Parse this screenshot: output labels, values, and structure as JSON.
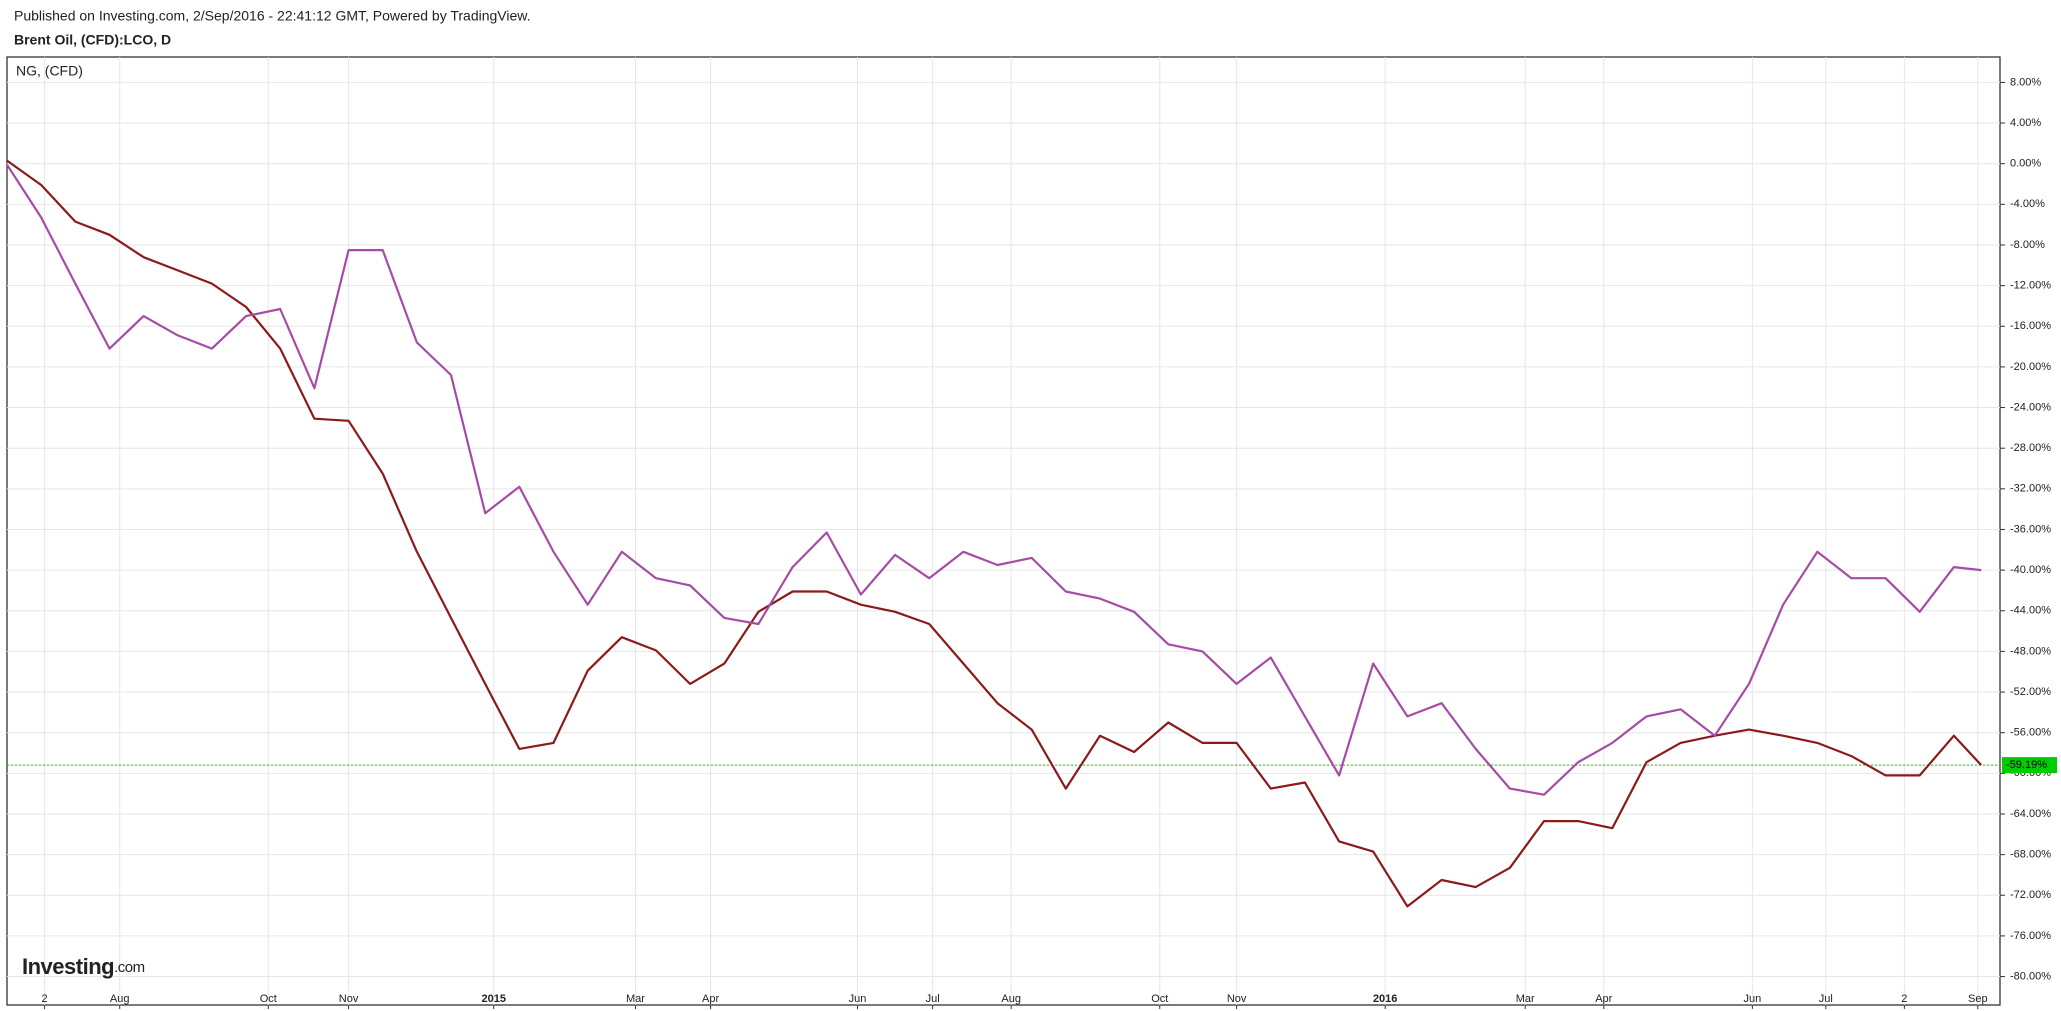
{
  "chart_data": {
    "type": "line",
    "title": "Published on Investing.com, 2/Sep/2016 - 22:41:12 GMT, Powered by TradingView.",
    "x": [
      0,
      2,
      4,
      6,
      8,
      10,
      12,
      14,
      16,
      18,
      20,
      22,
      24,
      26,
      28,
      30,
      32,
      34,
      36,
      38,
      40,
      42,
      44,
      46,
      48,
      50,
      52,
      54,
      56,
      58,
      60,
      62,
      64,
      66,
      68,
      70,
      72,
      74,
      76,
      78,
      80,
      82,
      84,
      86,
      88,
      90,
      92,
      94,
      96,
      98,
      100,
      102,
      104,
      106,
      108,
      110,
      112,
      114,
      115.6
    ],
    "series": [
      {
        "name": "Brent Oil, (CFD):LCO, D",
        "color": "#8b1a1a",
        "values": [
          0.3,
          -2.1,
          -5.7,
          -7.0,
          -9.2,
          -10.5,
          -11.8,
          -14.1,
          -18.2,
          -25.1,
          -25.3,
          -30.5,
          -38.2,
          -44.7,
          -51.2,
          -57.6,
          -57.0,
          -49.9,
          -46.6,
          -47.9,
          -51.2,
          -49.2,
          -44.1,
          -42.1,
          -42.1,
          -43.4,
          -44.1,
          -45.3,
          -49.2,
          -53.1,
          -55.7,
          -61.5,
          -56.3,
          -57.9,
          -55.0,
          -57.0,
          -57.0,
          -61.5,
          -60.9,
          -66.7,
          -67.7,
          -73.1,
          -70.5,
          -71.2,
          -69.3,
          -64.7,
          -64.7,
          -65.4,
          -58.9,
          -57.0,
          -56.3,
          -55.7,
          -56.3,
          -57.0,
          -58.3,
          -60.2,
          -60.2,
          -56.3,
          -59.19
        ]
      },
      {
        "name": "NG,  (CFD)",
        "color": "#a64ca6",
        "values": [
          -0.1,
          -5.3,
          -11.8,
          -18.2,
          -15.0,
          -16.9,
          -18.2,
          -15.0,
          -14.3,
          -22.1,
          -8.5,
          -8.5,
          -17.6,
          -20.8,
          -34.4,
          -31.8,
          -38.2,
          -43.4,
          -38.2,
          -40.8,
          -41.5,
          -44.7,
          -45.3,
          -39.7,
          -36.3,
          -42.4,
          -38.5,
          -40.8,
          -38.2,
          -39.5,
          -38.8,
          -42.1,
          -42.8,
          -44.1,
          -47.3,
          -48.0,
          -51.2,
          -48.6,
          -54.4,
          -60.2,
          -49.2,
          -54.4,
          -53.1,
          -57.6,
          -61.5,
          -62.1,
          -58.9,
          -57.0,
          -54.4,
          -53.7,
          -56.3,
          -51.2,
          -43.4,
          -38.2,
          -40.8,
          -40.8,
          -44.1,
          -39.7,
          -40.0
        ]
      }
    ],
    "reference_line": {
      "value": -59.19,
      "label": "-59.19%",
      "color": "#00cc00"
    },
    "xlim": [
      0,
      116.7
    ],
    "xticks": [
      {
        "value": 2.2,
        "label": "2"
      },
      {
        "value": 6.6,
        "label": "Aug"
      },
      {
        "value": 15.3,
        "label": "Oct"
      },
      {
        "value": 20.0,
        "label": "Nov"
      },
      {
        "value": 28.5,
        "label": "2015"
      },
      {
        "value": 36.8,
        "label": "Mar"
      },
      {
        "value": 41.2,
        "label": "Apr"
      },
      {
        "value": 49.8,
        "label": "Jun"
      },
      {
        "value": 54.2,
        "label": "Jul"
      },
      {
        "value": 58.8,
        "label": "Aug"
      },
      {
        "value": 67.5,
        "label": "Oct"
      },
      {
        "value": 72.0,
        "label": "Nov"
      },
      {
        "value": 80.7,
        "label": "2016"
      },
      {
        "value": 88.9,
        "label": "Mar"
      },
      {
        "value": 93.5,
        "label": "Apr"
      },
      {
        "value": 102.2,
        "label": "Jun"
      },
      {
        "value": 106.5,
        "label": "Jul"
      },
      {
        "value": 111.1,
        "label": "2"
      },
      {
        "value": 115.4,
        "label": "Sep"
      }
    ],
    "ylim": [
      -82.8,
      10.5
    ],
    "yticks": [
      {
        "value": 8,
        "label": "8.00%"
      },
      {
        "value": 4,
        "label": "4.00%"
      },
      {
        "value": 0,
        "label": "0.00%"
      },
      {
        "value": -4,
        "label": "-4.00%"
      },
      {
        "value": -8,
        "label": "-8.00%"
      },
      {
        "value": -12,
        "label": "-12.00%"
      },
      {
        "value": -16,
        "label": "-16.00%"
      },
      {
        "value": -20,
        "label": "-20.00%"
      },
      {
        "value": -24,
        "label": "-24.00%"
      },
      {
        "value": -28,
        "label": "-28.00%"
      },
      {
        "value": -32,
        "label": "-32.00%"
      },
      {
        "value": -36,
        "label": "-36.00%"
      },
      {
        "value": -40,
        "label": "-40.00%"
      },
      {
        "value": -44,
        "label": "-44.00%"
      },
      {
        "value": -48,
        "label": "-48.00%"
      },
      {
        "value": -52,
        "label": "-52.00%"
      },
      {
        "value": -56,
        "label": "-56.00%"
      },
      {
        "value": -60,
        "label": "-60.00%"
      },
      {
        "value": -64,
        "label": "-64.00%"
      },
      {
        "value": -68,
        "label": "-68.00%"
      },
      {
        "value": -72,
        "label": "-72.00%"
      },
      {
        "value": -76,
        "label": "-76.00%"
      },
      {
        "value": -80,
        "label": "-80.00%"
      }
    ],
    "grid": true
  },
  "logo": {
    "text": "Investing",
    "suffix": ".com"
  }
}
